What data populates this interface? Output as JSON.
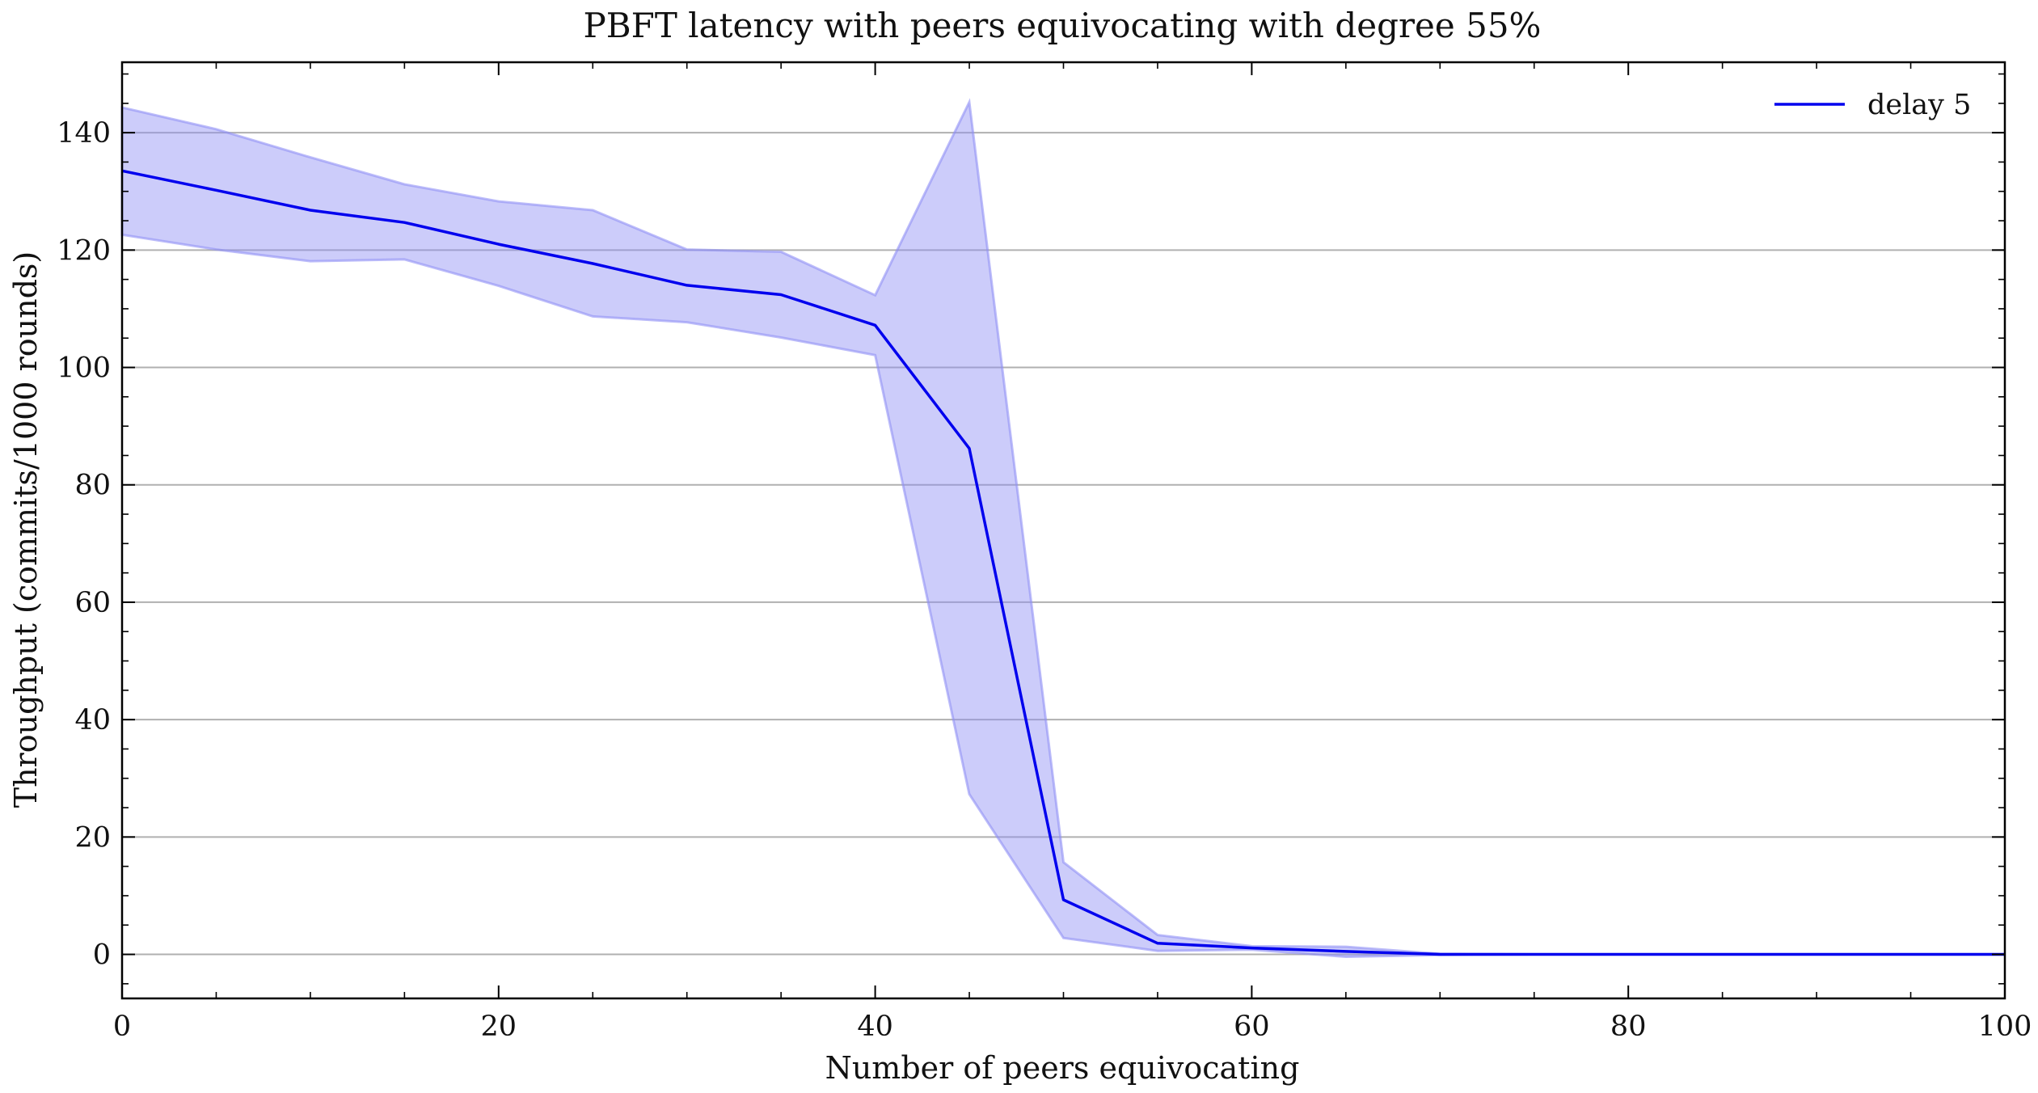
{
  "chart_data": {
    "type": "line",
    "title": "PBFT latency with peers equivocating with degree 55%",
    "xlabel": "Number of peers equivocating",
    "ylabel": "Throughput (commits/1000 rounds)",
    "xlim": [
      0,
      100
    ],
    "ylim": [
      -7.5,
      152
    ],
    "x_ticks": [
      0,
      20,
      40,
      60,
      80,
      100
    ],
    "y_ticks": [
      0,
      20,
      40,
      60,
      80,
      100,
      120,
      140
    ],
    "grid": "horizontal",
    "legend_position": "top-right",
    "x": [
      0,
      5,
      10,
      15,
      20,
      25,
      30,
      35,
      40,
      45,
      50,
      55,
      60,
      65,
      70,
      75,
      80,
      85,
      90,
      95,
      100
    ],
    "series": [
      {
        "name": "delay 5",
        "color": "#0000ee",
        "band_color": "#8f8ff5",
        "values": [
          133.5,
          130.2,
          126.8,
          124.7,
          121.0,
          117.7,
          114.0,
          112.4,
          107.2,
          86.2,
          9.3,
          1.9,
          1.1,
          0.5,
          0.0,
          0.0,
          0.0,
          0.0,
          0.0,
          0.0,
          0.0
        ],
        "upper": [
          144.3,
          140.6,
          135.8,
          131.2,
          128.3,
          126.8,
          120.1,
          119.7,
          112.3,
          145.2,
          15.7,
          3.3,
          1.4,
          1.3,
          0.1,
          0.0,
          0.0,
          0.0,
          0.0,
          0.0,
          0.0
        ],
        "lower": [
          122.6,
          120.1,
          118.1,
          118.4,
          113.9,
          108.7,
          107.7,
          105.1,
          102.1,
          27.3,
          2.8,
          0.6,
          0.8,
          -0.4,
          -0.1,
          0.0,
          0.0,
          0.0,
          0.0,
          0.0,
          0.0
        ]
      }
    ]
  }
}
